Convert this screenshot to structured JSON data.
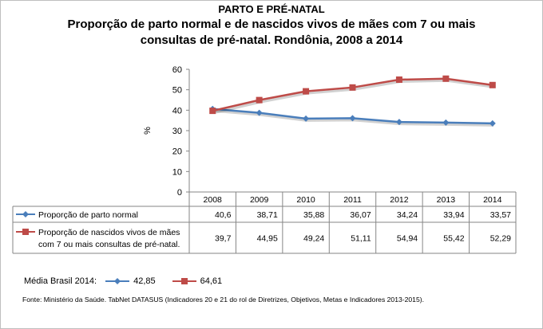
{
  "header": {
    "title": "PARTO E PRÉ-NATAL",
    "subtitle_line1": "Proporção de parto normal e de nascidos vivos de mães com 7 ou mais",
    "subtitle_line2": "consultas de pré-natal. Rondônia, 2008 a 2014"
  },
  "chart_data": {
    "type": "line",
    "title": "Proporção de parto normal e de nascidos vivos de mães com 7 ou mais consultas de pré-natal. Rondônia, 2008 a 2014",
    "ylabel": "%",
    "xlabel": "",
    "ylim": [
      0,
      60
    ],
    "yticks": [
      "0",
      "10",
      "20",
      "30",
      "40",
      "50",
      "60"
    ],
    "categories": [
      "2008",
      "2009",
      "2010",
      "2011",
      "2012",
      "2013",
      "2014"
    ],
    "series": [
      {
        "name": "Proporção de parto normal",
        "color": "#4a7ebb",
        "marker": "diamond",
        "values": [
          40.6,
          38.71,
          35.88,
          36.07,
          34.24,
          33.94,
          33.57
        ],
        "labels": [
          "40,6",
          "38,71",
          "35,88",
          "36,07",
          "34,24",
          "33,94",
          "33,57"
        ]
      },
      {
        "name_line1": "Proporção de nascidos vivos de mães",
        "name_line2": "com 7 ou mais consultas de pré-natal.",
        "color": "#be4b48",
        "marker": "square",
        "values": [
          39.7,
          44.95,
          49.24,
          51.11,
          54.94,
          55.42,
          52.29
        ],
        "labels": [
          "39,7",
          "44,95",
          "49,24",
          "51,11",
          "54,94",
          "55,42",
          "52,29"
        ]
      }
    ]
  },
  "summary": {
    "label": "Média Brasil 2014:",
    "values": [
      "42,85",
      "64,61"
    ]
  },
  "source": "Fonte: Ministério da Saúde. TabNet DATASUS (Indicadores 20 e 21 do rol de Diretrizes, Objetivos, Metas e Indicadores 2013-2015)."
}
